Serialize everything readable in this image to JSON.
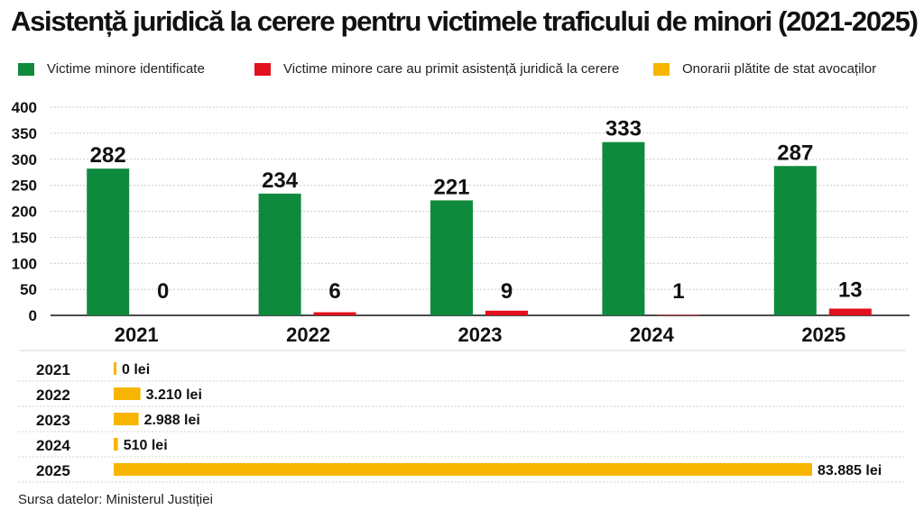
{
  "title": "Asistență juridică la cerere pentru victimele traficului de minori (2021-2025)",
  "legend": [
    {
      "label": "Victime minore identificate",
      "color": "#0f8a3c"
    },
    {
      "label": "Victime minore care au primit asistență juridică la cerere",
      "color": "#e3101e"
    },
    {
      "label": "Onorarii plătite de stat avocaților",
      "color": "#f7b500"
    }
  ],
  "chart_data": [
    {
      "type": "bar",
      "categories": [
        "2021",
        "2022",
        "2023",
        "2024",
        "2025"
      ],
      "series": [
        {
          "name": "Victime minore identificate",
          "values": [
            282,
            234,
            221,
            333,
            287
          ],
          "labels": [
            "282",
            "234",
            "221",
            "333",
            "287"
          ],
          "color": "#0f8a3c"
        },
        {
          "name": "Victime minore care au primit asistență juridică la cerere",
          "values": [
            0,
            6,
            9,
            1,
            13
          ],
          "labels": [
            "0",
            "6",
            "9",
            "1",
            "13"
          ],
          "color": "#e3101e"
        }
      ],
      "yticks": [
        "0",
        "50",
        "100",
        "150",
        "200",
        "250",
        "300",
        "350",
        "400"
      ],
      "ylim": [
        0,
        400
      ],
      "grid": true,
      "legend": "top"
    },
    {
      "type": "bar",
      "orientation": "horizontal",
      "categories": [
        "2021",
        "2022",
        "2023",
        "2024",
        "2025"
      ],
      "series": [
        {
          "name": "Onorarii plătite de stat avocaților",
          "values": [
            0,
            3210,
            2988,
            510,
            83885
          ],
          "labels": [
            "0 lei",
            "3.210 lei",
            "2.988 lei",
            "510 lei",
            "83.885 lei"
          ],
          "color": "#f7b500"
        }
      ],
      "grid": true
    }
  ],
  "source": "Sursa datelor: Ministerul Justiției"
}
